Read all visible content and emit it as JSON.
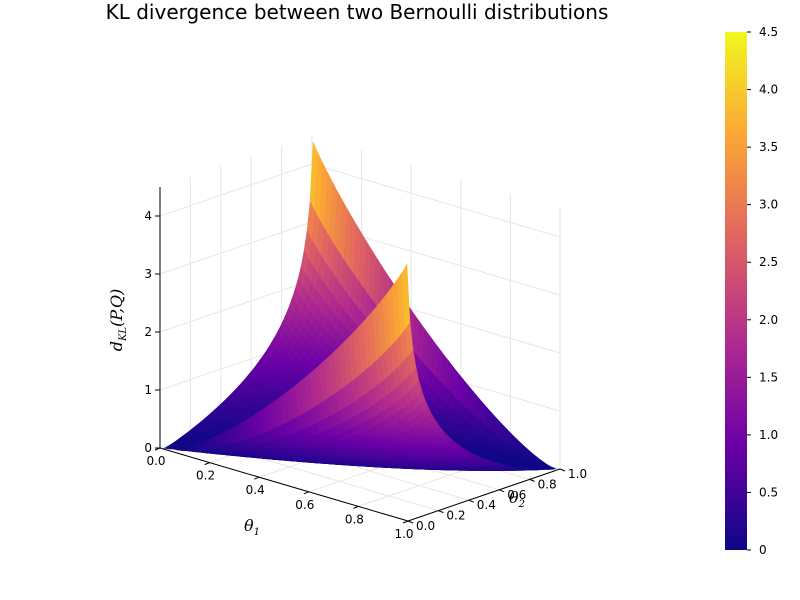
{
  "chart_data": {
    "type": "surface",
    "title": "KL divergence between two Bernoulli distributions",
    "xlabel": {
      "main": "θ",
      "sub": "1"
    },
    "ylabel": {
      "main": "θ",
      "sub": "2"
    },
    "zlabel": {
      "main": "d",
      "sub": "KL",
      "rest": "(P,Q)"
    },
    "xlim": [
      0,
      1
    ],
    "ylim": [
      0,
      1
    ],
    "zlim": [
      0,
      4.5
    ],
    "x_ticks": [
      "0.0",
      "0.2",
      "0.4",
      "0.6",
      "0.8",
      "1.0"
    ],
    "y_ticks": [
      "0.0",
      "0.2",
      "0.4",
      "0.6",
      "0.8",
      "1.0"
    ],
    "z_ticks": [
      "0",
      "1",
      "2",
      "3",
      "4"
    ],
    "colorbar": {
      "min": 0,
      "max": 4.5,
      "ticks": [
        "0",
        "0.5",
        "1.0",
        "1.5",
        "2.0",
        "2.5",
        "3.0",
        "3.5",
        "4.0",
        "4.5"
      ],
      "colormap": [
        "#0c0786",
        "#6a00a7",
        "#b02a8f",
        "#e06461",
        "#fca635",
        "#eff821"
      ]
    },
    "function": "θ1·ln(θ1/θ2) + (1−θ1)·ln((1−θ1)/(1−θ2))",
    "grid": true
  }
}
